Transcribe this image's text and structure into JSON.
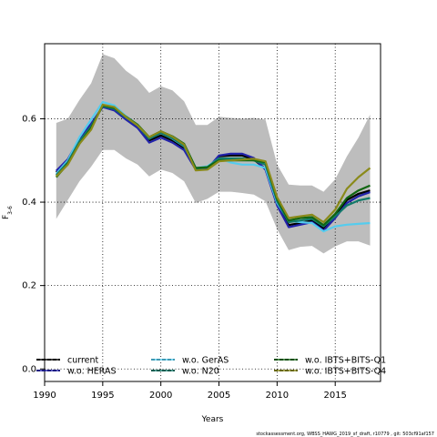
{
  "chart_data": {
    "type": "line",
    "xlabel": "Years",
    "ylabel": "F",
    "ylabel_sub": "3-6",
    "xlim": [
      1990,
      2018.9
    ],
    "ylim": [
      -0.03,
      0.78
    ],
    "xticks": [
      1990,
      1995,
      2000,
      2005,
      2010,
      2015
    ],
    "yticks": [
      0.0,
      0.2,
      0.4,
      0.6
    ],
    "grid": true,
    "legend_position": "bottom",
    "footnote": "stockassessment.org, WBSS_HAWG_2019_sf_draft, r10779 , git: 503cf91af157",
    "x": [
      1991,
      1992,
      1993,
      1994,
      1995,
      1996,
      1997,
      1998,
      1999,
      2000,
      2001,
      2002,
      2003,
      2004,
      2005,
      2006,
      2007,
      2008,
      2009,
      2010,
      2011,
      2012,
      2013,
      2014,
      2015,
      2016,
      2017,
      2018
    ],
    "band": {
      "upper": [
        0.59,
        0.6,
        0.645,
        0.685,
        0.755,
        0.745,
        0.715,
        0.695,
        0.662,
        0.678,
        0.668,
        0.642,
        0.585,
        0.585,
        0.605,
        0.602,
        0.6,
        0.602,
        0.598,
        0.49,
        0.442,
        0.44,
        0.44,
        0.425,
        0.455,
        0.51,
        0.555,
        0.61
      ],
      "lower": [
        0.36,
        0.405,
        0.45,
        0.485,
        0.525,
        0.525,
        0.505,
        0.49,
        0.462,
        0.478,
        0.47,
        0.45,
        0.398,
        0.408,
        0.425,
        0.425,
        0.422,
        0.418,
        0.402,
        0.335,
        0.285,
        0.293,
        0.295,
        0.277,
        0.294,
        0.306,
        0.306,
        0.296
      ]
    },
    "series": [
      {
        "name": "current",
        "color": "#000000",
        "dash": "solid",
        "values": [
          0.472,
          0.5,
          0.548,
          0.583,
          0.63,
          0.622,
          0.6,
          0.58,
          0.548,
          0.56,
          0.548,
          0.53,
          0.48,
          0.482,
          0.51,
          0.512,
          0.512,
          0.502,
          0.48,
          0.4,
          0.345,
          0.35,
          0.356,
          0.337,
          0.368,
          0.405,
          0.42,
          0.428
        ]
      },
      {
        "name": "w.o. HERAS",
        "color": "#2222aa",
        "dash": "solid",
        "values": [
          0.475,
          0.503,
          0.552,
          0.588,
          0.628,
          0.62,
          0.598,
          0.578,
          0.543,
          0.555,
          0.543,
          0.525,
          0.478,
          0.48,
          0.512,
          0.516,
          0.516,
          0.506,
          0.478,
          0.392,
          0.34,
          0.346,
          0.352,
          0.332,
          0.362,
          0.398,
          0.414,
          0.424
        ]
      },
      {
        "name": "w.o. GerAS",
        "color": "#55ccee",
        "dash": "solid",
        "values": [
          0.468,
          0.5,
          0.556,
          0.598,
          0.64,
          0.632,
          0.606,
          0.586,
          0.552,
          0.566,
          0.552,
          0.534,
          0.482,
          0.486,
          0.505,
          0.495,
          0.49,
          0.49,
          0.482,
          0.398,
          0.355,
          0.352,
          0.35,
          0.33,
          0.342,
          0.346,
          0.348,
          0.35
        ]
      },
      {
        "name": "w.o. N20",
        "color": "#117a6a",
        "dash": "solid",
        "values": [
          0.465,
          0.496,
          0.546,
          0.582,
          0.63,
          0.624,
          0.603,
          0.584,
          0.552,
          0.566,
          0.553,
          0.535,
          0.48,
          0.484,
          0.505,
          0.505,
          0.505,
          0.5,
          0.49,
          0.402,
          0.352,
          0.356,
          0.36,
          0.342,
          0.366,
          0.392,
          0.404,
          0.41
        ]
      },
      {
        "name": "w.o. IBTS+BITS-Q1",
        "color": "#116611",
        "dash": "solid",
        "values": [
          0.46,
          0.492,
          0.54,
          0.578,
          0.632,
          0.626,
          0.605,
          0.586,
          0.556,
          0.57,
          0.558,
          0.54,
          0.482,
          0.484,
          0.5,
          0.5,
          0.5,
          0.5,
          0.496,
          0.408,
          0.356,
          0.362,
          0.364,
          0.345,
          0.372,
          0.41,
          0.428,
          0.44
        ]
      },
      {
        "name": "w.o. IBTS+BITS-Q4",
        "color": "#8a8a1a",
        "dash": "solid",
        "values": [
          0.462,
          0.49,
          0.54,
          0.574,
          0.634,
          0.628,
          0.604,
          0.584,
          0.556,
          0.57,
          0.557,
          0.538,
          0.476,
          0.478,
          0.498,
          0.5,
          0.502,
          0.504,
          0.498,
          0.412,
          0.362,
          0.366,
          0.37,
          0.352,
          0.382,
          0.432,
          0.46,
          0.482
        ]
      }
    ]
  }
}
